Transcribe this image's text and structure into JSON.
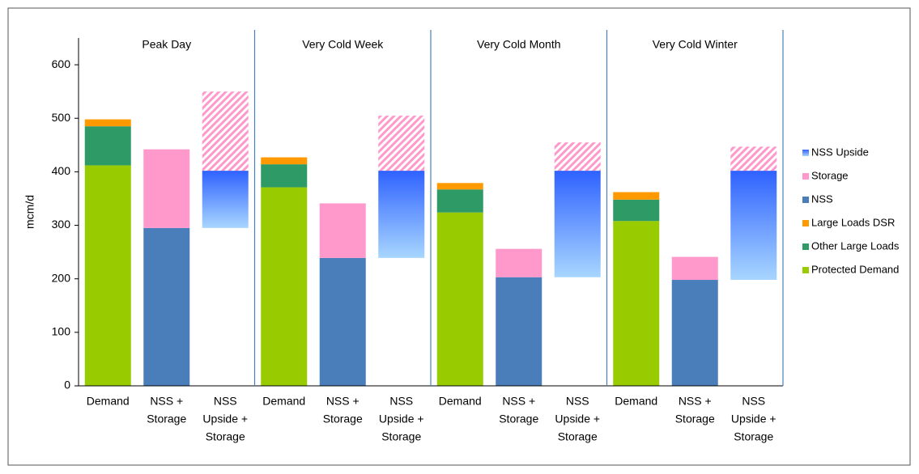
{
  "chart_data": {
    "type": "stacked-bar",
    "y_label": "mcm/d",
    "ylim": [
      0,
      650
    ],
    "yticks": [
      0,
      100,
      200,
      300,
      400,
      500,
      600
    ],
    "groups": [
      "Peak Day",
      "Very Cold Week",
      "Very Cold Month",
      "Very Cold Winter"
    ],
    "categories": [
      "Demand",
      [
        "NSS +",
        "Storage"
      ],
      [
        "NSS",
        "Upside +",
        "Storage"
      ],
      "Demand",
      [
        "NSS +",
        "Storage"
      ],
      [
        "NSS",
        "Upside +",
        "Storage"
      ],
      "Demand",
      [
        "NSS +",
        "Storage"
      ],
      [
        "NSS",
        "Upside +",
        "Storage"
      ],
      "Demand",
      [
        "NSS +",
        "Storage"
      ],
      [
        "NSS",
        "Upside +",
        "Storage"
      ]
    ],
    "column_styles": [
      "solid",
      "solid",
      "upside",
      "solid",
      "solid",
      "upside",
      "solid",
      "solid",
      "upside",
      "solid",
      "solid",
      "upside"
    ],
    "series": [
      {
        "name": "NSS Upside",
        "color": "gradient",
        "values": [
          null,
          null,
          107,
          null,
          null,
          163,
          null,
          null,
          199,
          null,
          null,
          204
        ]
      },
      {
        "name": "Storage",
        "color": "#ff99cc",
        "values": [
          null,
          147,
          148,
          null,
          102,
          103,
          null,
          53,
          53,
          null,
          43,
          45
        ]
      },
      {
        "name": "NSS",
        "color": "#4a7ebb",
        "values": [
          null,
          295,
          295,
          null,
          239,
          239,
          null,
          203,
          203,
          null,
          198,
          198
        ]
      },
      {
        "name": "Large Loads DSR",
        "color": "#ff9900",
        "values": [
          13,
          null,
          null,
          13,
          null,
          null,
          12,
          null,
          null,
          14,
          null,
          null
        ]
      },
      {
        "name": "Other Large Loads",
        "color": "#2e9a66",
        "values": [
          73,
          null,
          null,
          43,
          null,
          null,
          43,
          null,
          null,
          40,
          null,
          null
        ]
      },
      {
        "name": "Protected Demand",
        "color": "#99cc00",
        "values": [
          412,
          null,
          null,
          371,
          null,
          null,
          324,
          null,
          null,
          308,
          null,
          null
        ]
      }
    ]
  }
}
